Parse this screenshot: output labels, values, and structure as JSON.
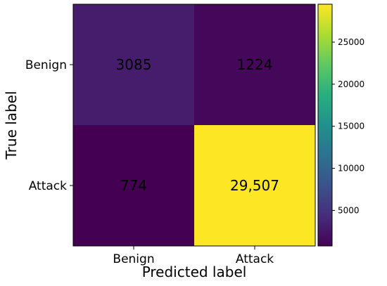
{
  "chart_data": {
    "type": "heatmap",
    "title": "",
    "xlabel": "Predicted label",
    "ylabel": "True label",
    "x_categories": [
      "Benign",
      "Attack"
    ],
    "y_categories": [
      "Benign",
      "Attack"
    ],
    "values": [
      [
        3085,
        1224
      ],
      [
        774,
        29507
      ]
    ],
    "cell_labels": [
      [
        "3085",
        "1224"
      ],
      [
        "774",
        "29,507"
      ]
    ],
    "colormap": "viridis",
    "colorbar": {
      "min": 774,
      "max": 29507,
      "ticks": [
        5000,
        10000,
        15000,
        20000,
        25000
      ],
      "tick_labels": [
        "5000",
        "10000",
        "15000",
        "20000",
        "25000"
      ]
    },
    "grid": false
  }
}
